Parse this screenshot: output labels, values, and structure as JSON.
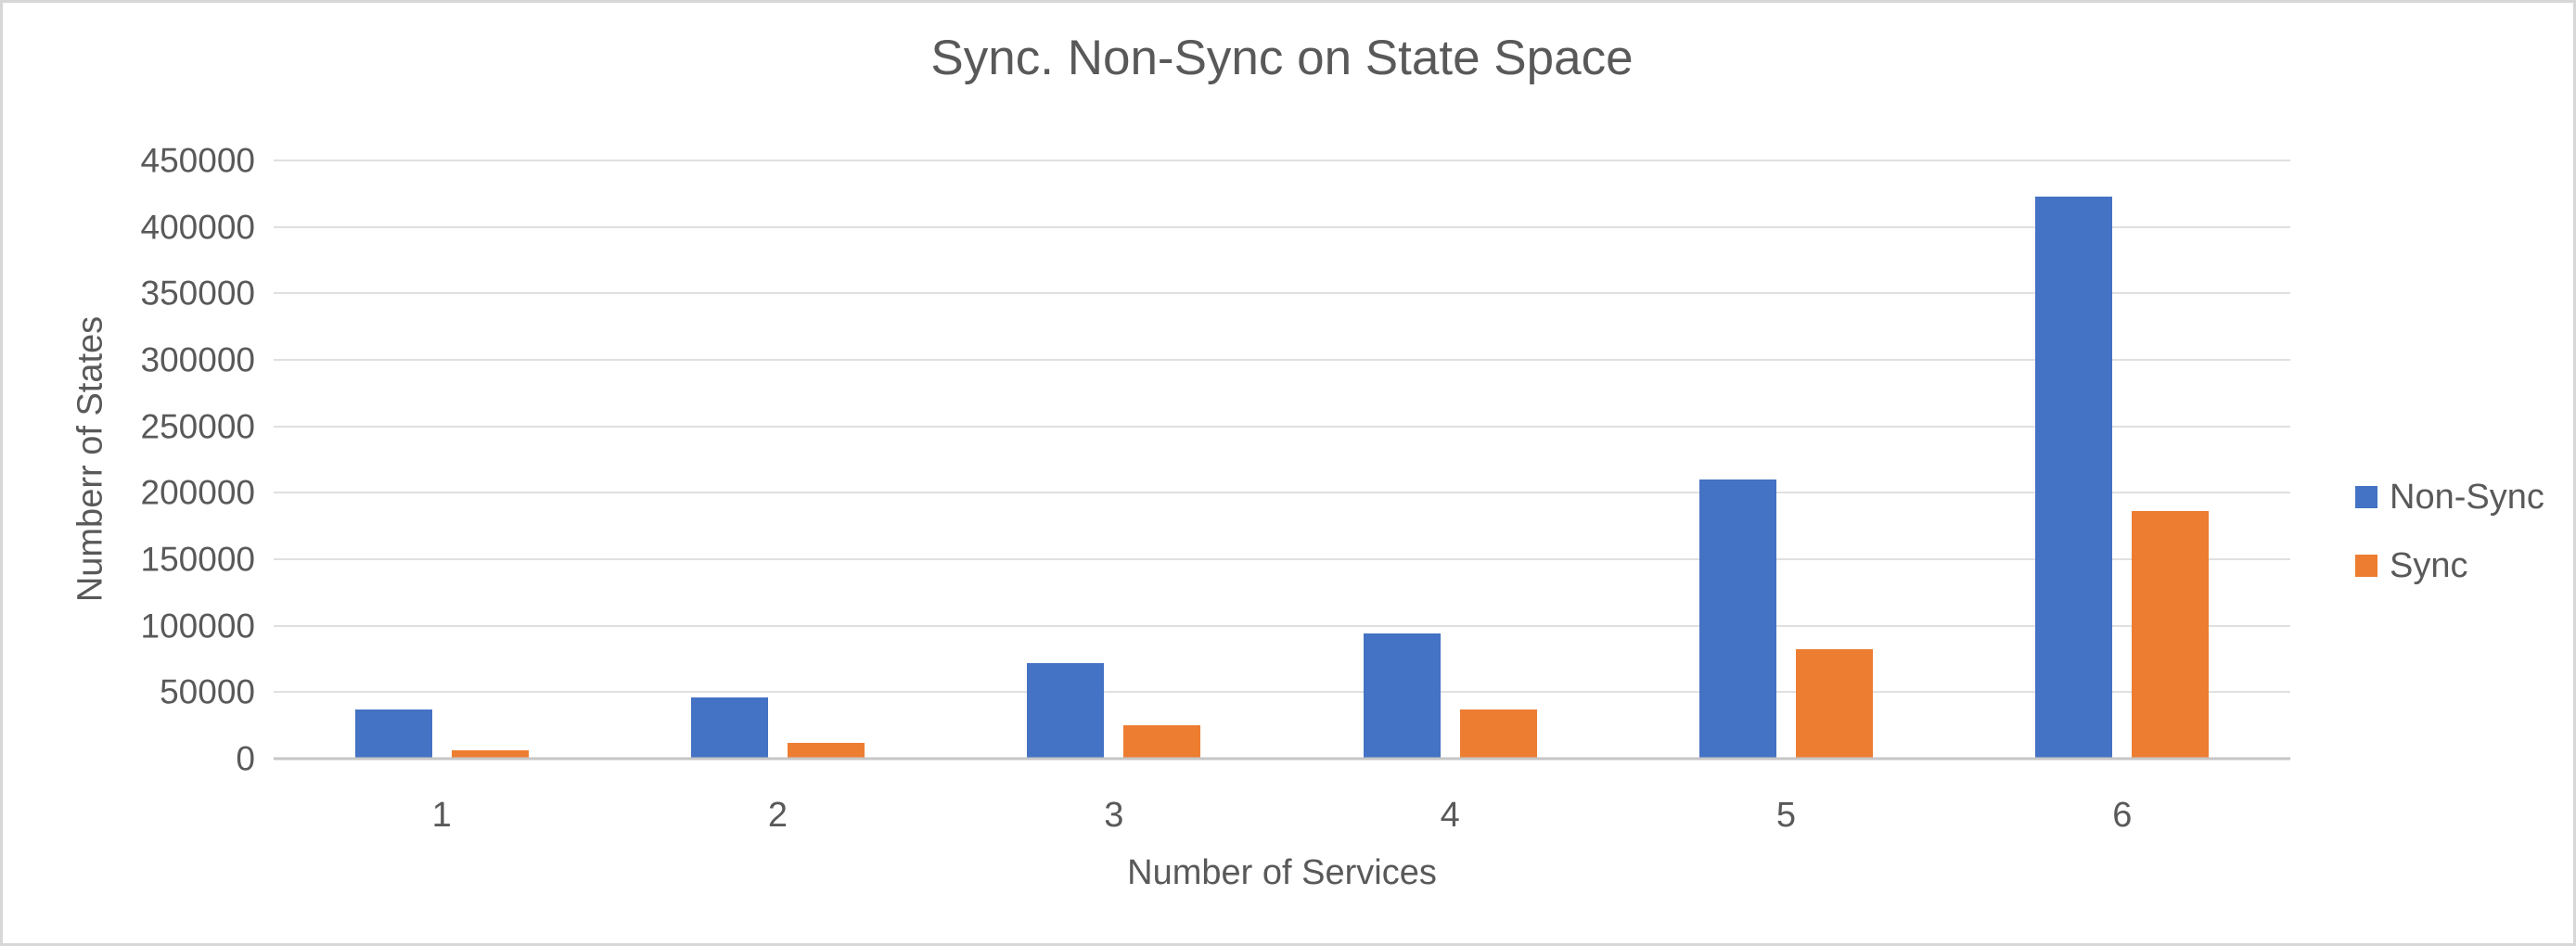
{
  "chart": {
    "title": "Sync. Non-Sync on State Space",
    "x_axis_title": "Number of Services",
    "y_axis_title": "Numberr of States"
  },
  "legend": {
    "position": "right",
    "items": [
      {
        "label": "Non-Sync",
        "color": "#4472C4"
      },
      {
        "label": "Sync",
        "color": "#ED7D31"
      }
    ]
  },
  "chart_data": {
    "type": "bar",
    "title": "Sync. Non-Sync on State Space",
    "xlabel": "Number of Services",
    "ylabel": "Numberr of States",
    "categories": [
      "1",
      "2",
      "3",
      "4",
      "5",
      "6"
    ],
    "series": [
      {
        "name": "Non-Sync",
        "color": "#4472C4",
        "values": [
          37000,
          46000,
          72000,
          94000,
          210000,
          423000
        ]
      },
      {
        "name": "Sync",
        "color": "#ED7D31",
        "values": [
          6000,
          12000,
          25000,
          37000,
          82000,
          186000
        ]
      }
    ],
    "ylim": [
      0,
      450000
    ],
    "yticks": [
      0,
      50000,
      100000,
      150000,
      200000,
      250000,
      300000,
      350000,
      400000,
      450000
    ],
    "grid": "horizontal",
    "legend_position": "right"
  },
  "colors": {
    "text": "#595959",
    "gridline": "#e0e0e0",
    "axis_line": "#c6c6c6",
    "background": "#ffffff",
    "frame_border": "#d7d7d7"
  }
}
